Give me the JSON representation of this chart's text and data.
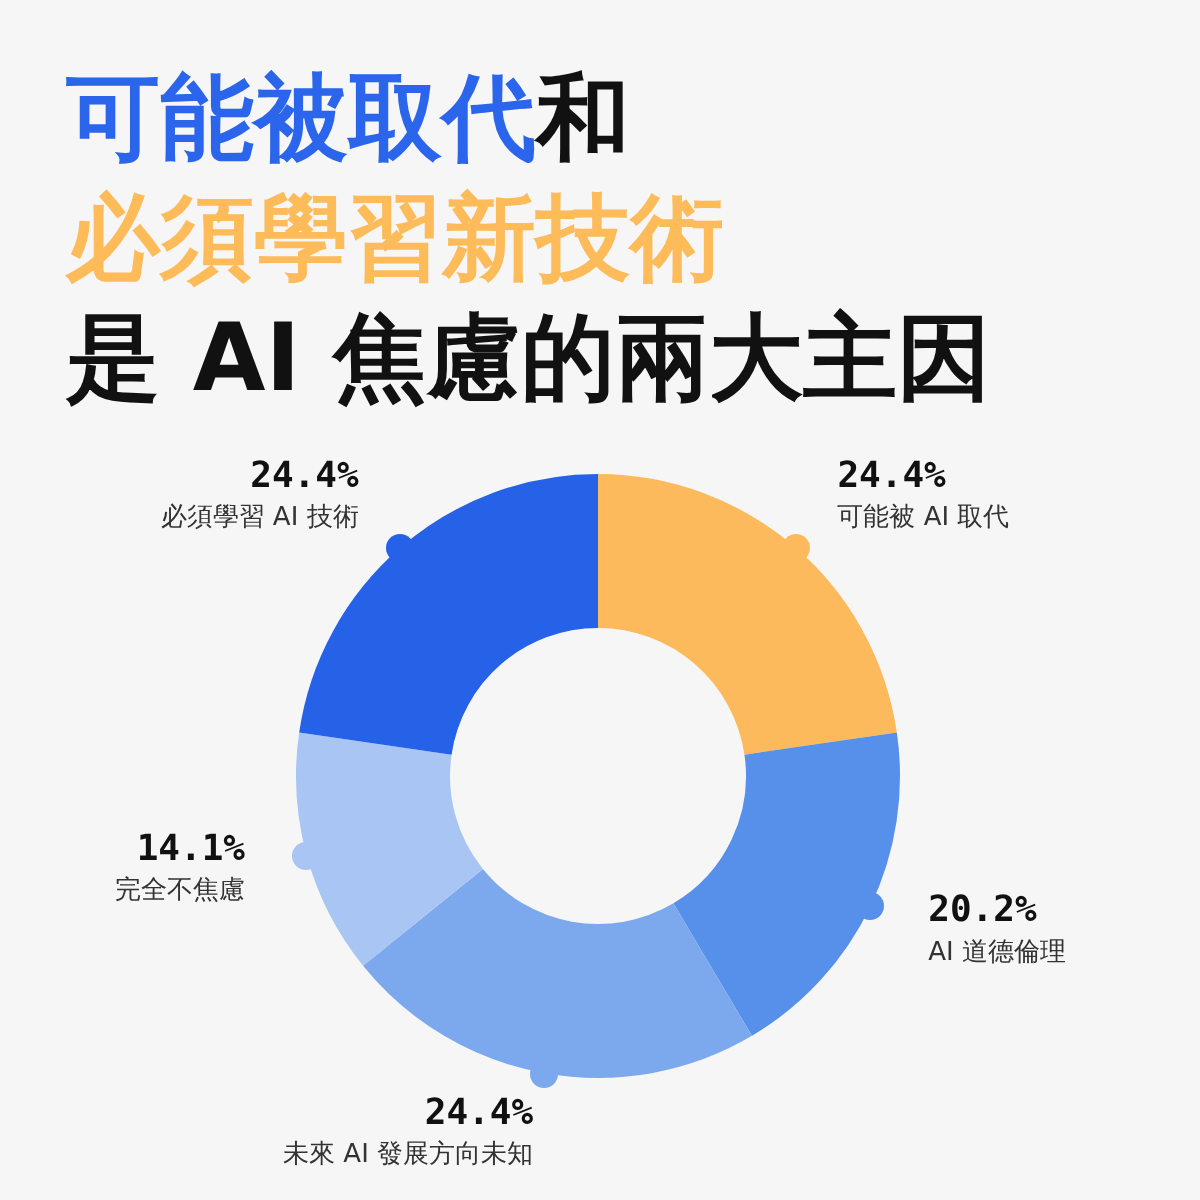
{
  "chart_data": {
    "type": "donut",
    "title": "可能被取代和必須學習新技術是 AI 焦慮的兩大主因",
    "categories": [
      "可能被 AI 取代",
      "AI 道德倫理",
      "未來 AI 發展方向未知",
      "完全不焦慮",
      "必須學習 AI 技術"
    ],
    "values": [
      24.4,
      20.2,
      24.4,
      14.1,
      24.4
    ],
    "value_labels": [
      "24.4%",
      "20.2%",
      "24.4%",
      "14.1%",
      "24.4%"
    ],
    "colors": [
      "#fdba5c",
      "#5690ea",
      "#7ca8ee",
      "#a8c5f4",
      "#2562e7"
    ]
  }
}
